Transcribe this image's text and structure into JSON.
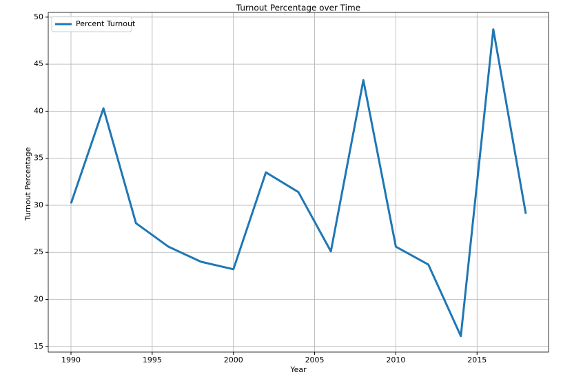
{
  "chart_data": {
    "type": "line",
    "title": "Turnout Percentage over Time",
    "x_label": "Year",
    "y_label": "Turnout Percentage",
    "x": [
      1990,
      1992,
      1994,
      1996,
      1998,
      2000,
      2002,
      2004,
      2006,
      2008,
      2010,
      2012,
      2014,
      2016,
      2018
    ],
    "series": [
      {
        "name": "Percent Turnout",
        "color": "#1f77b4",
        "values": [
          30.2,
          40.3,
          28.1,
          25.6,
          24.0,
          23.2,
          33.5,
          31.4,
          25.1,
          43.3,
          25.6,
          23.7,
          16.1,
          48.7,
          29.1
        ]
      }
    ],
    "xlim": [
      1988.6,
      2019.4
    ],
    "xticks": [
      1990,
      1995,
      2000,
      2005,
      2010,
      2015
    ],
    "ylim": [
      14.4,
      50.5
    ],
    "yticks": [
      15,
      20,
      25,
      30,
      35,
      40,
      45,
      50
    ],
    "grid": true,
    "legend": "upper left"
  }
}
